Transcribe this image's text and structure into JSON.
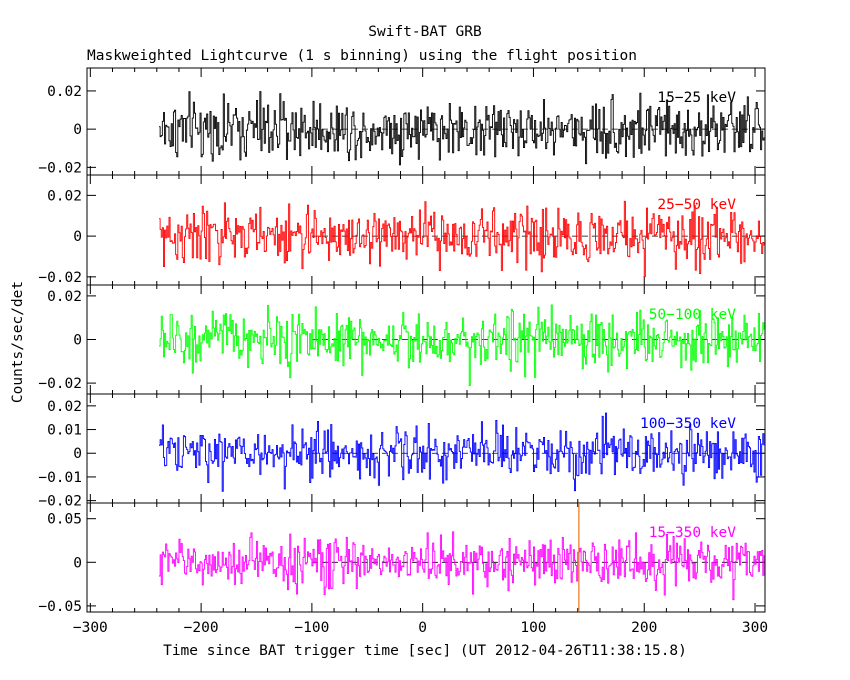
{
  "figure": {
    "title": "Swift-BAT GRB",
    "subtitle": "Maskweighted Lightcurve (1 s binning) using the flight position"
  },
  "chart_data": {
    "type": "line",
    "xlabel": "Time since BAT trigger time [sec] (UT 2012-04-26T11:38:15.8)",
    "ylabel": "Counts/sec/det",
    "xlim": [
      -303,
      309
    ],
    "x_ticks": [
      -300,
      -200,
      -100,
      0,
      100,
      200,
      300
    ],
    "data_x_range": [
      -238,
      309
    ],
    "bin_seconds": 1,
    "marker_line": {
      "x": 141,
      "color": "#e8761a"
    },
    "panels": [
      {
        "band": "15−25 keV",
        "color": "#000000",
        "ylim": [
          -0.024,
          0.032
        ],
        "y_ticks": [
          -0.02,
          0,
          0.02
        ],
        "y_tick_labels": [
          "−0.02",
          "0",
          "0.02"
        ],
        "noise_sigma": 0.0078,
        "peak_range": [
          -0.022,
          0.027
        ]
      },
      {
        "band": "25−50 keV",
        "color": "#ff0000",
        "ylim": [
          -0.024,
          0.03
        ],
        "y_ticks": [
          -0.02,
          0,
          0.02
        ],
        "y_tick_labels": [
          "−0.02",
          "0",
          "0.02"
        ],
        "noise_sigma": 0.0068,
        "peak_range": [
          -0.022,
          0.027
        ]
      },
      {
        "band": "50−100 keV",
        "color": "#00ff00",
        "ylim": [
          -0.025,
          0.025
        ],
        "y_ticks": [
          -0.02,
          0,
          0.02
        ],
        "y_tick_labels": [
          "−0.02",
          "0",
          "0.02"
        ],
        "noise_sigma": 0.0063,
        "peak_range": [
          -0.022,
          0.022
        ]
      },
      {
        "band": "100−350 keV",
        "color": "#0000ff",
        "ylim": [
          -0.021,
          0.025
        ],
        "y_ticks": [
          -0.02,
          -0.01,
          0,
          0.01,
          0.02
        ],
        "y_tick_labels": [
          "−0.02",
          "−0.01",
          "0",
          "0.01",
          "0.02"
        ],
        "noise_sigma": 0.0055,
        "peak_range": [
          -0.018,
          0.021
        ]
      },
      {
        "band": "15−350 keV",
        "color": "#ff00ff",
        "ylim": [
          -0.057,
          0.068
        ],
        "y_ticks": [
          -0.05,
          0,
          0.05
        ],
        "y_tick_labels": [
          "−0.05",
          "0",
          "0.05"
        ],
        "noise_sigma": 0.014,
        "peak_range": [
          -0.05,
          0.06
        ]
      }
    ]
  }
}
